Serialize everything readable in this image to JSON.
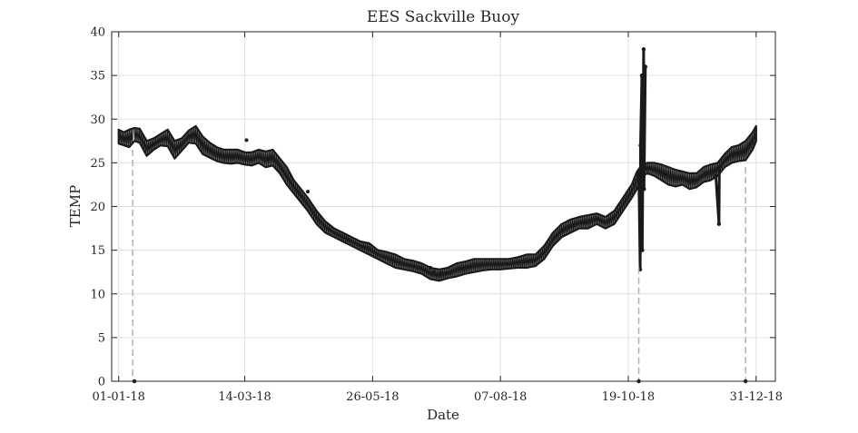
{
  "chart_data": {
    "type": "line",
    "title": "EES Sackville Buoy",
    "xlabel": "Date",
    "ylabel": "TEMP",
    "xlim": [
      "2017-12-28",
      "2019-01-11"
    ],
    "ylim": [
      0,
      40
    ],
    "x_ticks": [
      {
        "date": "2018-01-01",
        "label": "01-01-18"
      },
      {
        "date": "2018-03-14",
        "label": "14-03-18"
      },
      {
        "date": "2018-05-26",
        "label": "26-05-18"
      },
      {
        "date": "2018-08-07",
        "label": "07-08-18"
      },
      {
        "date": "2018-10-19",
        "label": "19-10-18"
      },
      {
        "date": "2018-12-31",
        "label": "31-12-18"
      }
    ],
    "y_ticks": [
      0,
      5,
      10,
      15,
      20,
      25,
      30,
      35,
      40
    ],
    "grid": true,
    "colors": {
      "series": "#1a1a1a",
      "band": "#a8a8a8",
      "gap": "#b0b0b0",
      "grid": "#e0e0e0",
      "axis": "#262626"
    },
    "series": [
      {
        "style": "band",
        "x": [
          "2018-01-01",
          "2018-01-04",
          "2018-01-07",
          "2018-01-10",
          "2018-01-13",
          "2018-01-17",
          "2018-01-21",
          "2018-01-25",
          "2018-01-29",
          "2018-02-02",
          "2018-02-06",
          "2018-02-10",
          "2018-02-14",
          "2018-02-18",
          "2018-02-22",
          "2018-02-26",
          "2018-03-02",
          "2018-03-06",
          "2018-03-10",
          "2018-03-14",
          "2018-03-18",
          "2018-03-22",
          "2018-03-26",
          "2018-03-30",
          "2018-04-03",
          "2018-04-07",
          "2018-04-11",
          "2018-04-15",
          "2018-04-19",
          "2018-04-24",
          "2018-04-29",
          "2018-05-04",
          "2018-05-09",
          "2018-05-14",
          "2018-05-19",
          "2018-05-24",
          "2018-05-29",
          "2018-06-03",
          "2018-06-08",
          "2018-06-13",
          "2018-06-18",
          "2018-06-23",
          "2018-06-28",
          "2018-07-03",
          "2018-07-08",
          "2018-07-13",
          "2018-07-18",
          "2018-07-23",
          "2018-07-28",
          "2018-08-02",
          "2018-08-07",
          "2018-08-12",
          "2018-08-17",
          "2018-08-22",
          "2018-08-27",
          "2018-09-01",
          "2018-09-06",
          "2018-09-11",
          "2018-09-16",
          "2018-09-21",
          "2018-09-26",
          "2018-10-01",
          "2018-10-06",
          "2018-10-11",
          "2018-10-16",
          "2018-10-21",
          "2018-10-24",
          "2018-10-27",
          "2018-10-30",
          "2018-11-03",
          "2018-11-07",
          "2018-11-11",
          "2018-11-15",
          "2018-11-19",
          "2018-11-23",
          "2018-11-27",
          "2018-12-01",
          "2018-12-05",
          "2018-12-09",
          "2018-12-13",
          "2018-12-17",
          "2018-12-21",
          "2018-12-25",
          "2018-12-29",
          "2018-12-31"
        ],
        "y_low": [
          27.2,
          27.0,
          26.8,
          27.5,
          27.3,
          25.8,
          26.5,
          27.0,
          26.9,
          25.5,
          26.4,
          27.3,
          27.2,
          26.0,
          25.6,
          25.2,
          25.0,
          24.9,
          25.0,
          24.8,
          24.7,
          25.0,
          24.5,
          24.7,
          23.8,
          22.5,
          21.5,
          20.5,
          19.5,
          18.0,
          17.0,
          16.5,
          16.0,
          15.5,
          15.0,
          14.5,
          14.0,
          13.5,
          13.0,
          12.8,
          12.6,
          12.3,
          11.7,
          11.5,
          11.8,
          12.0,
          12.3,
          12.5,
          12.7,
          12.8,
          12.8,
          12.9,
          13.0,
          13.0,
          13.2,
          14.0,
          15.5,
          16.5,
          17.0,
          17.5,
          17.5,
          18.0,
          17.5,
          18.0,
          19.5,
          21.0,
          22.0,
          23.5,
          23.8,
          23.5,
          23.0,
          22.5,
          22.3,
          22.5,
          22.0,
          22.2,
          22.8,
          23.0,
          23.5,
          24.5,
          25.0,
          25.2,
          25.3,
          26.5,
          27.5
        ],
        "y_high": [
          28.8,
          28.5,
          28.8,
          29.0,
          28.9,
          27.5,
          27.8,
          28.3,
          28.8,
          27.5,
          27.8,
          28.7,
          29.2,
          28.0,
          27.3,
          26.8,
          26.5,
          26.5,
          26.5,
          26.2,
          26.2,
          26.5,
          26.3,
          26.5,
          25.5,
          24.5,
          23.0,
          22.0,
          21.0,
          19.5,
          18.3,
          17.5,
          17.0,
          16.5,
          16.0,
          15.8,
          15.0,
          14.8,
          14.5,
          14.0,
          13.8,
          13.5,
          13.0,
          12.8,
          13.0,
          13.5,
          13.7,
          14.0,
          14.0,
          14.0,
          14.0,
          14.0,
          14.2,
          14.5,
          14.5,
          15.5,
          17.0,
          18.0,
          18.5,
          18.8,
          19.0,
          19.2,
          18.8,
          19.5,
          21.0,
          22.5,
          24.0,
          24.8,
          25.0,
          25.0,
          24.8,
          24.5,
          24.2,
          24.0,
          23.8,
          23.8,
          24.5,
          24.8,
          25.0,
          26.0,
          26.8,
          27.0,
          27.5,
          28.5,
          29.2
        ]
      },
      {
        "style": "spike",
        "x": [
          "2018-10-25",
          "2018-10-25",
          "2018-10-26",
          "2018-10-26",
          "2018-10-27",
          "2018-10-27",
          "2018-10-28",
          "2018-10-28"
        ],
        "y": [
          24.0,
          12.8,
          27.0,
          35.0,
          15.0,
          38.0,
          22.0,
          36.0
        ]
      },
      {
        "style": "spike",
        "x": [
          "2018-12-08",
          "2018-12-09",
          "2018-12-10"
        ],
        "y": [
          23.5,
          18.0,
          24.5
        ]
      },
      {
        "style": "outliers",
        "x": [
          "2018-03-15",
          "2018-04-19",
          "2018-06-28",
          "2018-06-30",
          "2018-07-04"
        ],
        "y": [
          27.6,
          21.7,
          13.0,
          12.5,
          12.4
        ]
      },
      {
        "style": "gap",
        "x": [
          "2018-01-09",
          "2018-10-25",
          "2018-12-25"
        ],
        "y_top": [
          26.5,
          13.0,
          24.5
        ]
      },
      {
        "style": "gap-marker",
        "x": [
          "2018-01-10",
          "2018-10-25",
          "2018-12-25"
        ],
        "y": [
          0,
          0,
          0
        ]
      }
    ]
  }
}
